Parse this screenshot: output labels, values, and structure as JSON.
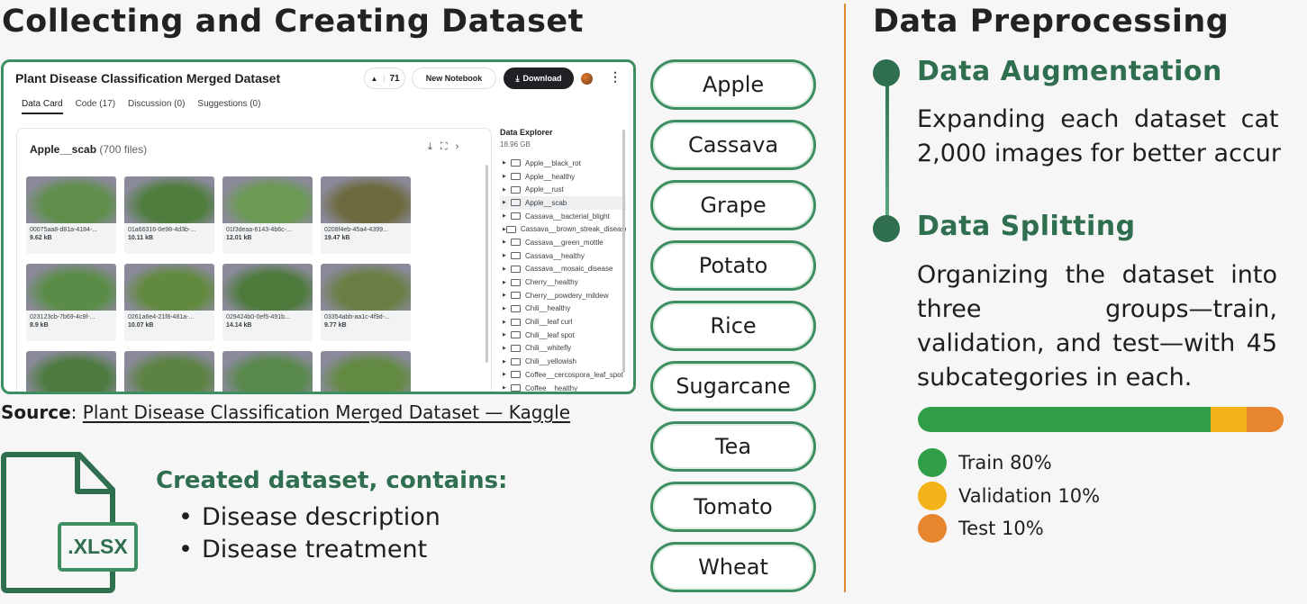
{
  "left": {
    "title": "Collecting and Creating Dataset",
    "source_label": "Source",
    "source_link": "Plant Disease Classification Merged Dataset — Kaggle"
  },
  "kaggle": {
    "dataset_title": "Plant Disease Classification Merged Dataset",
    "upvotes": "71",
    "new_notebook": "New Notebook",
    "download": "Download",
    "tabs": [
      "Data Card",
      "Code (17)",
      "Discussion (0)",
      "Suggestions (0)"
    ],
    "folder_name": "Apple__scab",
    "folder_count": "(700 files)",
    "thumbs": [
      {
        "name": "00075aa8-d81a-4184-...",
        "size": "9.62 kB",
        "color": "#5f8f4a"
      },
      {
        "name": "01a66316-0e98-4d3b-...",
        "size": "10.11 kB",
        "color": "#4f7d3d"
      },
      {
        "name": "01f3deaa-6143-4b6c-...",
        "size": "12.01 kB",
        "color": "#6b9a52"
      },
      {
        "name": "0208f4eb-45a4-4399...",
        "size": "19.47 kB",
        "color": "#6e6a40"
      },
      {
        "name": "023123cb-7b69-4c9f-...",
        "size": "8.9 kB",
        "color": "#5a8c48"
      },
      {
        "name": "0261a6e4-21f8-481a-...",
        "size": "10.07 kB",
        "color": "#628a3e"
      },
      {
        "name": "029424b0-0ef5-491b...",
        "size": "14.14 kB",
        "color": "#4e7a3c"
      },
      {
        "name": "03354abb-aa1c-4f9d-...",
        "size": "9.77 kB",
        "color": "#6b7f45"
      },
      {
        "name": "",
        "size": "",
        "color": "#4d7a3e"
      },
      {
        "name": "",
        "size": "",
        "color": "#5c8344"
      },
      {
        "name": "",
        "size": "",
        "color": "#58884a"
      },
      {
        "name": "",
        "size": "",
        "color": "#638a43"
      }
    ],
    "explorer_title": "Data Explorer",
    "explorer_size": "18.96 GB",
    "explorer_items": [
      "Apple__black_rot",
      "Apple__healthy",
      "Apple__rust",
      "Apple__scab",
      "Cassava__bacterial_blight",
      "Cassava__brown_streak_disease",
      "Cassava__green_mottle",
      "Cassava__healthy",
      "Cassava__mosaic_disease",
      "Cherry__healthy",
      "Cherry__powdery_mildew",
      "Chili__healthy",
      "Chili__leaf curl",
      "Chili__leaf spot",
      "Chili__whitefly",
      "Chili__yellowish",
      "Coffee__cercospora_leaf_spot",
      "Coffee__healthy"
    ],
    "explorer_active": 3
  },
  "created": {
    "file_label": ".XLSX",
    "title": "Created dataset, contains:",
    "items": [
      "Disease description",
      "Disease treatment"
    ]
  },
  "crops": [
    "Apple",
    "Cassava",
    "Grape",
    "Potato",
    "Rice",
    "Sugarcane",
    "Tea",
    "Tomato",
    "Wheat"
  ],
  "right": {
    "title": "Data Preprocessing",
    "augmentation_title": "Data Augmentation",
    "augmentation_line1": "Expanding each dataset cat",
    "augmentation_line2": "2,000 images for better accur",
    "splitting_title": "Data Splitting",
    "splitting_text": "Organizing the dataset into three groups—train, validation, and test—with 45 subcategories in each.",
    "split": [
      {
        "label": "Train 80%",
        "fraction": 0.8,
        "color": "#2f9e47"
      },
      {
        "label": "Validation 10%",
        "fraction": 0.1,
        "color": "#f5b31a"
      },
      {
        "label": "Test 10%",
        "fraction": 0.1,
        "color": "#e8862f"
      }
    ]
  }
}
